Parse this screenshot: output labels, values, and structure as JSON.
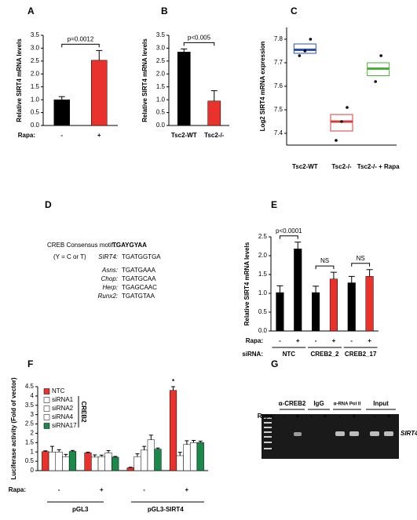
{
  "panel_labels": [
    "A",
    "B",
    "C",
    "D",
    "E",
    "F",
    "G"
  ],
  "chart_data": [
    {
      "type": "bar",
      "y_label": "Relative SIRT4 mRNA levels",
      "category_label": "Rapa:",
      "categories": [
        "-",
        "+"
      ],
      "values": [
        1.0,
        2.53
      ],
      "errors": [
        0.12,
        0.38
      ],
      "colors": [
        "#000000",
        "#e8322b"
      ],
      "ylim": [
        0,
        3.5
      ],
      "yticks": [
        {
          "value": 0,
          "label": "0.0"
        },
        0.5,
        {
          "value": 1,
          "label": "1.0"
        },
        1.5,
        {
          "value": 2,
          "label": "2.0"
        },
        2.5,
        {
          "value": 3,
          "label": "3.0"
        },
        3.5
      ],
      "annotations": [
        "p=0.0012"
      ]
    },
    {
      "type": "bar",
      "y_label": "Relative SIRT4 mRNA levels",
      "categories": [
        "Tsc2-WT",
        "Tsc2-/-"
      ],
      "values": [
        2.85,
        0.95
      ],
      "errors": [
        0.12,
        0.4
      ],
      "colors": [
        "#000000",
        "#e8322b"
      ],
      "ylim": [
        0,
        3.5
      ],
      "yticks": [
        {
          "value": 0,
          "label": "0.0"
        },
        0.5,
        {
          "value": 1,
          "label": "1.0"
        },
        1.5,
        {
          "value": 2,
          "label": "2.0"
        },
        2.5,
        {
          "value": 3,
          "label": "3.0"
        },
        3.5
      ],
      "annotations": [
        "p<0.005"
      ]
    },
    {
      "type": "box",
      "y_label": "Log2 SIRT4 mRNA expression",
      "categories": [
        "Tsc2-WT",
        "Tsc2-/-",
        "Tsc2-/- + Rapa"
      ],
      "boxes": [
        {
          "q1": 7.74,
          "median": 7.755,
          "q3": 7.78,
          "points": [
            7.73,
            7.75,
            7.8
          ]
        },
        {
          "q1": 7.41,
          "median": 7.45,
          "q3": 7.48,
          "points": [
            7.37,
            7.45,
            7.51
          ]
        },
        {
          "q1": 7.645,
          "median": 7.675,
          "q3": 7.7,
          "points": [
            7.62,
            7.73
          ]
        }
      ],
      "colors": [
        "#2b4fb5",
        "#d83a3a",
        "#4caf3c"
      ],
      "ylim": [
        7.35,
        7.85
      ],
      "yticks": [
        7.4,
        7.5,
        7.6,
        7.7,
        7.8
      ]
    },
    {
      "type": "bar",
      "y_label": "Relative SIRT4 mRNA levels",
      "category_label": "Rapa:",
      "group_label": "siRNA:",
      "categories": [
        "-",
        "+",
        "-",
        "+",
        "-",
        "+"
      ],
      "groups": [
        "NTC",
        "CREB2_2",
        "CREB2_17"
      ],
      "values": [
        1.02,
        2.18,
        1.02,
        1.38,
        1.28,
        1.45
      ],
      "errors": [
        0.18,
        0.18,
        0.17,
        0.18,
        0.17,
        0.18
      ],
      "colors": [
        "#000000",
        "#000000",
        "#000000",
        "#e8322b",
        "#000000",
        "#e8322b"
      ],
      "ylim": [
        0,
        2.5
      ],
      "yticks": [
        {
          "value": 0,
          "label": "0.0"
        },
        0.5,
        {
          "value": 1,
          "label": "1.0"
        },
        1.5,
        {
          "value": 2,
          "label": "2.0"
        },
        2.5
      ],
      "annotations": [
        "p<0.0001",
        "NS",
        "NS"
      ]
    },
    {
      "type": "grouped_bar",
      "y_label": "Luciferase activity (Fold of vector)",
      "category_label": "Rapa:",
      "categories": [
        "-",
        "+",
        "-",
        "+"
      ],
      "groups": [
        "pGL3",
        "pGL3-SIRT4"
      ],
      "legend_group": "CREB2",
      "series": [
        {
          "name": "NTC",
          "color": "#e8322b",
          "values": [
            1.02,
            0.95,
            0.15,
            4.3
          ],
          "errors": [
            0.04,
            0.04,
            0.03,
            0.2
          ]
        },
        {
          "name": "siRNA1",
          "color": "#ffffff",
          "values": [
            1.0,
            0.72,
            0.75,
            0.8
          ],
          "errors": [
            0.3,
            0.12,
            0.15,
            0.18
          ]
        },
        {
          "name": "siRNA2",
          "color": "#ffffff",
          "values": [
            1.0,
            0.75,
            1.1,
            1.4
          ],
          "errors": [
            0.12,
            0.08,
            0.2,
            0.2
          ]
        },
        {
          "name": "siRNA4",
          "color": "#ffffff",
          "values": [
            0.75,
            0.95,
            1.65,
            1.5
          ],
          "errors": [
            0.12,
            0.12,
            0.25,
            0.12
          ]
        },
        {
          "name": "siRNA17",
          "color": "#1a8a4a",
          "values": [
            1.03,
            0.72,
            1.15,
            1.5
          ],
          "errors": [
            0.05,
            0.04,
            0.06,
            0.08
          ]
        }
      ],
      "ylim": [
        0,
        4.5
      ],
      "yticks": [
        0,
        0.5,
        1,
        1.5,
        2,
        2.5,
        3,
        3.5,
        4,
        4.5
      ],
      "annotations": [
        "*"
      ]
    }
  ],
  "motif_panel": {
    "motif_label": "CREB Consensus motif :",
    "motif": "TGAYGYAA",
    "note": "(Y = C or T)",
    "genes": [
      {
        "name": "SIRT4:",
        "seq": "TGATGGTGA"
      },
      {
        "name": "Asns:",
        "seq": "TGATGAAA"
      },
      {
        "name": "Chop:",
        "seq": "TGATGCAA"
      },
      {
        "name": "Herp:",
        "seq": "TGAGCAAC"
      },
      {
        "name": "Runx2:",
        "seq": "TGATGTAA"
      }
    ]
  },
  "gel_panel": {
    "antibodies": [
      "α-CREB2",
      "IgG",
      "α-RNA Pol II",
      "Input"
    ],
    "treatment_label": "Rapa:",
    "lanes": [
      "-",
      "+",
      "-",
      "+",
      "-",
      "+",
      "-",
      "+"
    ],
    "gene": "SIRT4"
  }
}
